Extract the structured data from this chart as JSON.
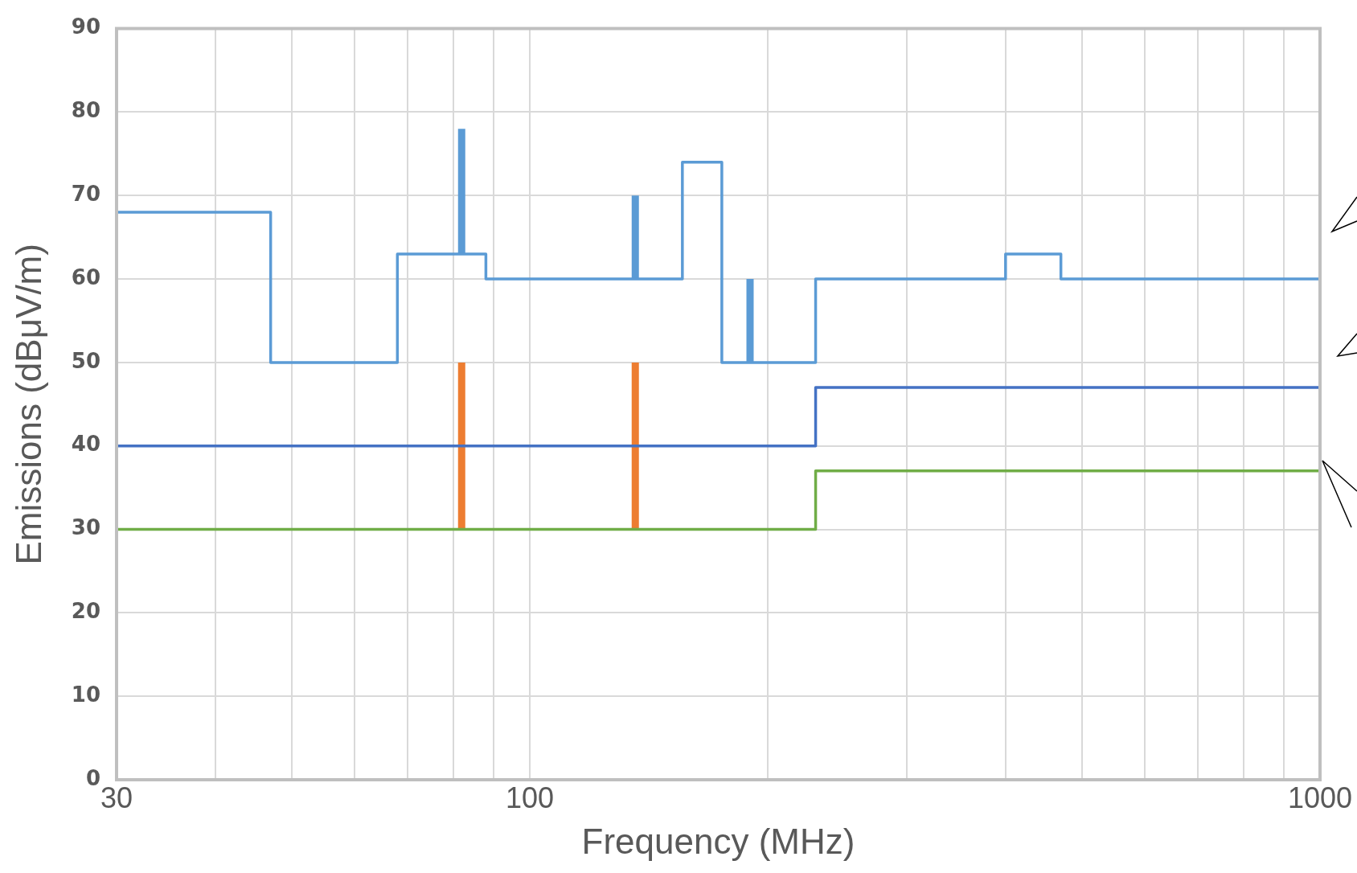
{
  "chart_data": {
    "type": "step",
    "xlabel": "Frequency (MHz)",
    "ylabel": "Emissions (dBμV/m)",
    "log": "x",
    "grid": true,
    "legend": false,
    "marker": "none",
    "line_style": "solid",
    "xlim": [
      30,
      1000
    ],
    "ylim": [
      0,
      90
    ],
    "xticks": [
      30,
      {
        "value": 40,
        "label": null
      },
      {
        "value": 50,
        "label": null
      },
      {
        "value": 60,
        "label": null
      },
      {
        "value": 70,
        "label": null
      },
      {
        "value": 80,
        "label": null
      },
      {
        "value": 90,
        "label": null
      },
      100,
      {
        "value": 200,
        "label": null
      },
      {
        "value": 300,
        "label": null
      },
      {
        "value": 400,
        "label": null
      },
      {
        "value": 500,
        "label": null
      },
      {
        "value": 600,
        "label": null
      },
      {
        "value": 700,
        "label": null
      },
      {
        "value": 800,
        "label": null
      },
      {
        "value": 900,
        "label": null
      },
      1000
    ],
    "yticks": [
      0,
      10,
      20,
      30,
      40,
      50,
      60,
      70,
      80,
      90
    ],
    "series": [
      {
        "color": "#70ad47",
        "x": [
          30,
          230,
          1000
        ],
        "values": [
          30,
          37,
          37
        ]
      },
      {
        "color": "#4472c4",
        "x": [
          30,
          230,
          1000
        ],
        "values": [
          40,
          47,
          47
        ]
      },
      {
        "color": "#5b9bd5",
        "x": [
          30,
          47,
          68,
          88,
          156,
          175,
          230,
          400,
          470,
          1000
        ],
        "values": [
          68,
          50,
          63,
          60,
          74,
          50,
          60,
          63,
          60,
          60
        ]
      },
      {
        "type": "line",
        "color": "#5b9bd5",
        "x": [
          82,
          82
        ],
        "values": [
          63,
          78
        ]
      },
      {
        "type": "line",
        "color": "#5b9bd5",
        "x": [
          136,
          136
        ],
        "values": [
          60,
          70
        ]
      },
      {
        "type": "line",
        "color": "#5b9bd5",
        "x": [
          190,
          190
        ],
        "values": [
          50,
          60
        ]
      },
      {
        "type": "line",
        "color": "#ed7d31",
        "x": [
          82,
          82
        ],
        "values": [
          30,
          50
        ]
      },
      {
        "type": "line",
        "color": "#ed7d31",
        "x": [
          136,
          136
        ],
        "values": [
          30,
          50
        ]
      }
    ]
  }
}
